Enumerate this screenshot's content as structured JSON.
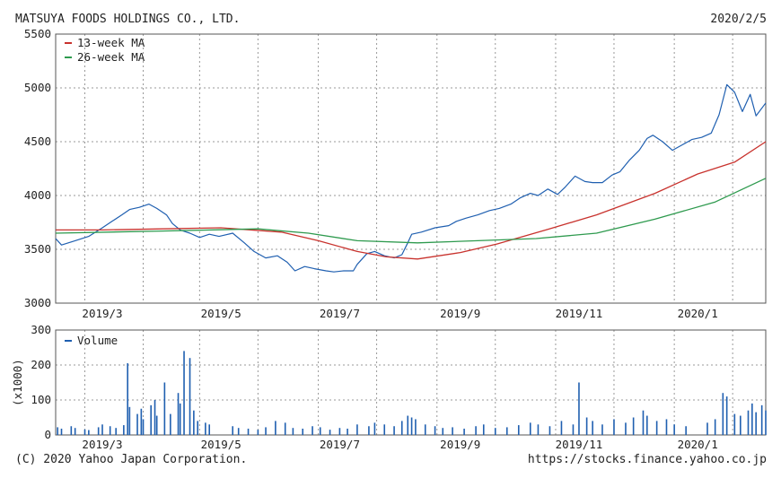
{
  "header": {
    "company": "MATSUYA FOODS HOLDINGS CO., LTD.",
    "date": "2020/2/5"
  },
  "footer": {
    "copyright": "(C) 2020 Yahoo Japan Corporation.",
    "url": "https://stocks.finance.yahoo.co.jp"
  },
  "colors": {
    "price": "#1f5fb0",
    "ma13": "#c8322d",
    "ma26": "#2e9a4e",
    "volume": "#1f5fb0",
    "grid": "#999999",
    "frame": "#555555"
  },
  "chart_data": [
    {
      "type": "line",
      "xlim": [
        "2019-02-05",
        "2020-02-05"
      ],
      "ylim": [
        3000,
        5500
      ],
      "yticks": [
        3000,
        3500,
        4000,
        4500,
        5000,
        5500
      ],
      "xtick_labels": [
        {
          "date": "2019-03-01",
          "label": "2019/3"
        },
        {
          "date": "2019-05-01",
          "label": "2019/5"
        },
        {
          "date": "2019-07-01",
          "label": "2019/7"
        },
        {
          "date": "2019-09-01",
          "label": "2019/9"
        },
        {
          "date": "2019-11-01",
          "label": "2019/11"
        },
        {
          "date": "2020-01-01",
          "label": "2020/1"
        }
      ],
      "grid": true,
      "legend": "top-left",
      "series": [
        {
          "name": "",
          "key": "price",
          "points": [
            [
              "2019-02-05",
              3600
            ],
            [
              "2019-02-08",
              3540
            ],
            [
              "2019-02-15",
              3580
            ],
            [
              "2019-02-22",
              3620
            ],
            [
              "2019-03-01",
              3700
            ],
            [
              "2019-03-06",
              3760
            ],
            [
              "2019-03-11",
              3820
            ],
            [
              "2019-03-15",
              3870
            ],
            [
              "2019-03-20",
              3890
            ],
            [
              "2019-03-25",
              3920
            ],
            [
              "2019-03-29",
              3880
            ],
            [
              "2019-04-03",
              3820
            ],
            [
              "2019-04-06",
              3740
            ],
            [
              "2019-04-10",
              3680
            ],
            [
              "2019-04-15",
              3650
            ],
            [
              "2019-04-20",
              3610
            ],
            [
              "2019-04-25",
              3640
            ],
            [
              "2019-04-30",
              3620
            ],
            [
              "2019-05-07",
              3650
            ],
            [
              "2019-05-13",
              3560
            ],
            [
              "2019-05-18",
              3480
            ],
            [
              "2019-05-24",
              3420
            ],
            [
              "2019-05-30",
              3440
            ],
            [
              "2019-06-04",
              3380
            ],
            [
              "2019-06-08",
              3300
            ],
            [
              "2019-06-13",
              3340
            ],
            [
              "2019-06-18",
              3320
            ],
            [
              "2019-06-24",
              3300
            ],
            [
              "2019-06-28",
              3290
            ],
            [
              "2019-07-03",
              3300
            ],
            [
              "2019-07-08",
              3300
            ],
            [
              "2019-07-10",
              3360
            ],
            [
              "2019-07-15",
              3460
            ],
            [
              "2019-07-19",
              3480
            ],
            [
              "2019-07-24",
              3440
            ],
            [
              "2019-07-29",
              3420
            ],
            [
              "2019-08-02",
              3450
            ],
            [
              "2019-08-05",
              3560
            ],
            [
              "2019-08-07",
              3640
            ],
            [
              "2019-08-12",
              3660
            ],
            [
              "2019-08-19",
              3700
            ],
            [
              "2019-08-26",
              3720
            ],
            [
              "2019-08-30",
              3760
            ],
            [
              "2019-09-04",
              3790
            ],
            [
              "2019-09-10",
              3820
            ],
            [
              "2019-09-16",
              3860
            ],
            [
              "2019-09-21",
              3880
            ],
            [
              "2019-09-27",
              3920
            ],
            [
              "2019-10-02",
              3980
            ],
            [
              "2019-10-07",
              4020
            ],
            [
              "2019-10-11",
              4000
            ],
            [
              "2019-10-16",
              4060
            ],
            [
              "2019-10-21",
              4010
            ],
            [
              "2019-10-25",
              4080
            ],
            [
              "2019-10-30",
              4180
            ],
            [
              "2019-11-04",
              4130
            ],
            [
              "2019-11-08",
              4120
            ],
            [
              "2019-11-13",
              4120
            ],
            [
              "2019-11-18",
              4190
            ],
            [
              "2019-11-22",
              4220
            ],
            [
              "2019-11-27",
              4330
            ],
            [
              "2019-12-02",
              4420
            ],
            [
              "2019-12-06",
              4530
            ],
            [
              "2019-12-09",
              4560
            ],
            [
              "2019-12-14",
              4500
            ],
            [
              "2019-12-19",
              4420
            ],
            [
              "2019-12-24",
              4470
            ],
            [
              "2019-12-29",
              4520
            ],
            [
              "2020-01-03",
              4540
            ],
            [
              "2020-01-08",
              4580
            ],
            [
              "2020-01-12",
              4750
            ],
            [
              "2020-01-16",
              5030
            ],
            [
              "2020-01-20",
              4960
            ],
            [
              "2020-01-24",
              4780
            ],
            [
              "2020-01-28",
              4940
            ],
            [
              "2020-01-31",
              4740
            ],
            [
              "2020-02-05",
              4860
            ]
          ]
        },
        {
          "name": "13-week MA",
          "key": "ma13",
          "points": [
            [
              "2019-02-05",
              3680
            ],
            [
              "2019-03-01",
              3680
            ],
            [
              "2019-04-01",
              3690
            ],
            [
              "2019-05-01",
              3700
            ],
            [
              "2019-06-01",
              3660
            ],
            [
              "2019-06-20",
              3580
            ],
            [
              "2019-07-10",
              3480
            ],
            [
              "2019-07-25",
              3430
            ],
            [
              "2019-08-10",
              3410
            ],
            [
              "2019-09-01",
              3470
            ],
            [
              "2019-09-20",
              3550
            ],
            [
              "2019-10-15",
              3680
            ],
            [
              "2019-11-10",
              3820
            ],
            [
              "2019-12-10",
              4020
            ],
            [
              "2020-01-01",
              4200
            ],
            [
              "2020-01-20",
              4310
            ],
            [
              "2020-02-05",
              4500
            ]
          ]
        },
        {
          "name": "26-week MA",
          "key": "ma26",
          "points": [
            [
              "2019-02-05",
              3650
            ],
            [
              "2019-04-01",
              3670
            ],
            [
              "2019-05-20",
              3690
            ],
            [
              "2019-06-15",
              3650
            ],
            [
              "2019-07-10",
              3580
            ],
            [
              "2019-08-10",
              3560
            ],
            [
              "2019-09-10",
              3580
            ],
            [
              "2019-10-10",
              3600
            ],
            [
              "2019-11-10",
              3650
            ],
            [
              "2019-12-10",
              3780
            ],
            [
              "2020-01-10",
              3940
            ],
            [
              "2020-02-05",
              4160
            ]
          ]
        }
      ]
    },
    {
      "type": "bar",
      "ylabel": "(x1000)",
      "ylim": [
        0,
        300
      ],
      "yticks": [
        0,
        100,
        200,
        300
      ],
      "grid": true,
      "legend": "top-left",
      "series": [
        {
          "name": "Volume",
          "key": "volume",
          "points": [
            [
              "2019-02-06",
              22
            ],
            [
              "2019-02-08",
              18
            ],
            [
              "2019-02-13",
              25
            ],
            [
              "2019-02-15",
              20
            ],
            [
              "2019-02-20",
              16
            ],
            [
              "2019-02-22",
              14
            ],
            [
              "2019-02-27",
              22
            ],
            [
              "2019-03-01",
              30
            ],
            [
              "2019-03-05",
              25
            ],
            [
              "2019-03-08",
              20
            ],
            [
              "2019-03-12",
              28
            ],
            [
              "2019-03-14",
              205
            ],
            [
              "2019-03-15",
              80
            ],
            [
              "2019-03-19",
              60
            ],
            [
              "2019-03-21",
              75
            ],
            [
              "2019-03-22",
              45
            ],
            [
              "2019-03-26",
              85
            ],
            [
              "2019-03-28",
              100
            ],
            [
              "2019-03-29",
              55
            ],
            [
              "2019-04-02",
              150
            ],
            [
              "2019-04-05",
              60
            ],
            [
              "2019-04-09",
              120
            ],
            [
              "2019-04-10",
              90
            ],
            [
              "2019-04-12",
              240
            ],
            [
              "2019-04-15",
              220
            ],
            [
              "2019-04-17",
              70
            ],
            [
              "2019-04-19",
              40
            ],
            [
              "2019-04-23",
              35
            ],
            [
              "2019-04-25",
              30
            ],
            [
              "2019-05-07",
              25
            ],
            [
              "2019-05-10",
              20
            ],
            [
              "2019-05-15",
              18
            ],
            [
              "2019-05-20",
              15
            ],
            [
              "2019-05-24",
              22
            ],
            [
              "2019-05-29",
              40
            ],
            [
              "2019-06-03",
              35
            ],
            [
              "2019-06-07",
              20
            ],
            [
              "2019-06-12",
              18
            ],
            [
              "2019-06-17",
              25
            ],
            [
              "2019-06-21",
              22
            ],
            [
              "2019-06-26",
              15
            ],
            [
              "2019-07-01",
              20
            ],
            [
              "2019-07-05",
              18
            ],
            [
              "2019-07-10",
              30
            ],
            [
              "2019-07-16",
              25
            ],
            [
              "2019-07-19",
              35
            ],
            [
              "2019-07-24",
              30
            ],
            [
              "2019-07-29",
              25
            ],
            [
              "2019-08-02",
              40
            ],
            [
              "2019-08-05",
              55
            ],
            [
              "2019-08-07",
              50
            ],
            [
              "2019-08-09",
              45
            ],
            [
              "2019-08-14",
              30
            ],
            [
              "2019-08-19",
              25
            ],
            [
              "2019-08-23",
              20
            ],
            [
              "2019-08-28",
              22
            ],
            [
              "2019-09-03",
              18
            ],
            [
              "2019-09-09",
              25
            ],
            [
              "2019-09-13",
              30
            ],
            [
              "2019-09-19",
              20
            ],
            [
              "2019-09-25",
              22
            ],
            [
              "2019-10-01",
              28
            ],
            [
              "2019-10-07",
              35
            ],
            [
              "2019-10-11",
              30
            ],
            [
              "2019-10-17",
              25
            ],
            [
              "2019-10-23",
              40
            ],
            [
              "2019-10-29",
              30
            ],
            [
              "2019-11-01",
              150
            ],
            [
              "2019-11-05",
              50
            ],
            [
              "2019-11-08",
              40
            ],
            [
              "2019-11-13",
              30
            ],
            [
              "2019-11-19",
              45
            ],
            [
              "2019-11-25",
              35
            ],
            [
              "2019-11-29",
              50
            ],
            [
              "2019-12-04",
              70
            ],
            [
              "2019-12-06",
              55
            ],
            [
              "2019-12-11",
              40
            ],
            [
              "2019-12-16",
              45
            ],
            [
              "2019-12-20",
              30
            ],
            [
              "2019-12-26",
              25
            ],
            [
              "2020-01-06",
              35
            ],
            [
              "2020-01-10",
              45
            ],
            [
              "2020-01-14",
              120
            ],
            [
              "2020-01-16",
              110
            ],
            [
              "2020-01-20",
              60
            ],
            [
              "2020-01-23",
              55
            ],
            [
              "2020-01-27",
              70
            ],
            [
              "2020-01-29",
              90
            ],
            [
              "2020-01-31",
              65
            ],
            [
              "2020-02-03",
              85
            ],
            [
              "2020-02-05",
              70
            ]
          ]
        }
      ]
    }
  ]
}
